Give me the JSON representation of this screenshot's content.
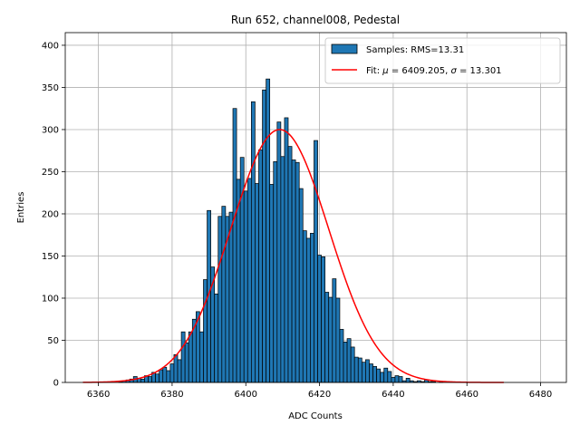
{
  "chart_data": {
    "type": "bar",
    "title": "Run 652, channel008, Pedestal",
    "xlabel": "ADC Counts",
    "ylabel": "Entries",
    "xlim": [
      6351,
      6487
    ],
    "ylim": [
      0,
      415
    ],
    "xticks": [
      6360,
      6380,
      6400,
      6420,
      6440,
      6460,
      6480
    ],
    "yticks": [
      0,
      50,
      100,
      150,
      200,
      250,
      300,
      350,
      400
    ],
    "grid": true,
    "legend_position": "top-right",
    "histogram": {
      "name": "Samples: RMS=13.31",
      "color": "#1f77b4",
      "edgecolor": "#000000",
      "bin_width": 1,
      "x": [
        6366,
        6367,
        6368,
        6369,
        6370,
        6371,
        6372,
        6373,
        6374,
        6375,
        6376,
        6377,
        6378,
        6379,
        6380,
        6381,
        6382,
        6383,
        6384,
        6385,
        6386,
        6387,
        6388,
        6389,
        6390,
        6391,
        6392,
        6393,
        6394,
        6395,
        6396,
        6397,
        6398,
        6399,
        6400,
        6401,
        6402,
        6403,
        6404,
        6405,
        6406,
        6407,
        6408,
        6409,
        6410,
        6411,
        6412,
        6413,
        6414,
        6415,
        6416,
        6417,
        6418,
        6419,
        6420,
        6421,
        6422,
        6423,
        6424,
        6425,
        6426,
        6427,
        6428,
        6429,
        6430,
        6431,
        6432,
        6433,
        6434,
        6435,
        6436,
        6437,
        6438,
        6439,
        6440,
        6441,
        6442,
        6443,
        6444,
        6445,
        6446,
        6447,
        6448,
        6449,
        6450,
        6451,
        6452,
        6453,
        6454
      ],
      "values": [
        1,
        2,
        3,
        4,
        7,
        5,
        4,
        8,
        7,
        12,
        10,
        15,
        18,
        14,
        22,
        33,
        27,
        60,
        47,
        60,
        75,
        84,
        60,
        122,
        204,
        137,
        105,
        197,
        209,
        197,
        202,
        325,
        241,
        267,
        227,
        242,
        333,
        236,
        276,
        347,
        360,
        235,
        262,
        309,
        268,
        314,
        280,
        264,
        261,
        230,
        180,
        171,
        177,
        287,
        151,
        149,
        107,
        101,
        123,
        100,
        63,
        48,
        52,
        42,
        30,
        29,
        24,
        27,
        22,
        19,
        16,
        12,
        17,
        13,
        6,
        8,
        7,
        2,
        5,
        2,
        1,
        2,
        1,
        3,
        1,
        1,
        0,
        1,
        0
      ]
    },
    "fit": {
      "name": "Fit: μ = 6409.205, σ = 13.301",
      "label_parts": [
        "Fit: ",
        "μ",
        " = 6409.205, ",
        "σ",
        " = 13.301"
      ],
      "color": "#ff0000",
      "type": "gaussian",
      "mu": 6409.205,
      "sigma": 13.301,
      "amplitude": 300,
      "x_range": [
        6355.8,
        6470
      ]
    }
  }
}
